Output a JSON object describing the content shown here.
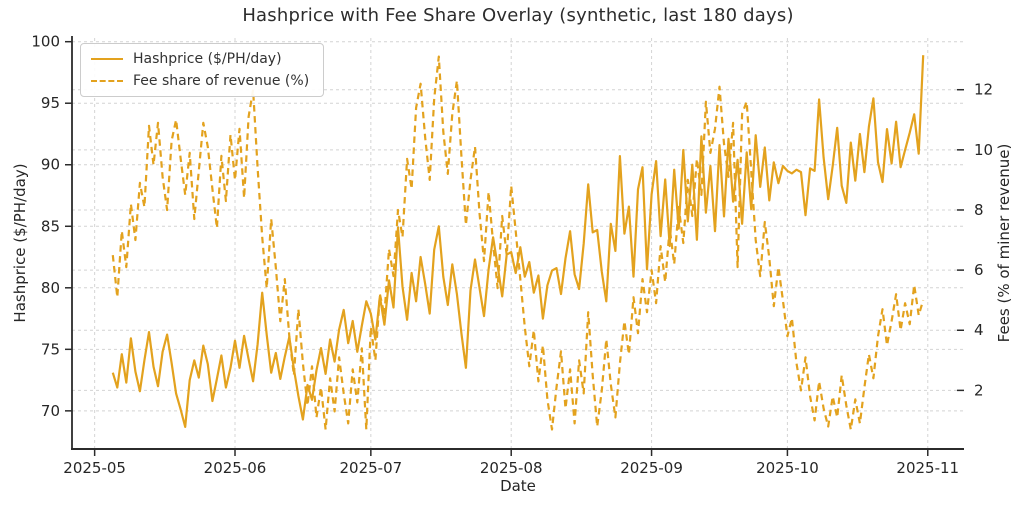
{
  "title": "Hashprice with Fee Share Overlay (synthetic, last 180 days)",
  "colors": {
    "line": "#E3A21E",
    "text": "#262626",
    "grid": "#d4d4d4",
    "spine": "#2b2b2b",
    "legend_border": "#cccccc",
    "background": "#ffffff"
  },
  "legend": {
    "items": [
      {
        "label": "Hashprice ($/PH/day)",
        "style": "solid"
      },
      {
        "label": "Fee share of revenue (%)",
        "style": "dashed"
      }
    ]
  },
  "axes": {
    "x": {
      "label": "Date",
      "tick_labels": [
        "2025-05",
        "2025-06",
        "2025-07",
        "2025-08",
        "2025-09",
        "2025-10",
        "2025-11"
      ],
      "tick_days": [
        0,
        31,
        61,
        92,
        123,
        153,
        184
      ],
      "range_days": [
        -5,
        192
      ]
    },
    "y_left": {
      "label": "Hashprice ($/PH/day)",
      "ticks": [
        70,
        75,
        80,
        85,
        90,
        95,
        100
      ],
      "range": [
        66.9,
        100.3
      ]
    },
    "y_right": {
      "label": "Fees (% of miner revenue)",
      "ticks": [
        2,
        4,
        6,
        8,
        10,
        12
      ],
      "range": [
        0.05,
        13.72
      ]
    }
  },
  "chart_data": {
    "type": "line",
    "title": "Hashprice with Fee Share Overlay (synthetic, last 180 days)",
    "xlabel": "Date",
    "ylabel_left": "Hashprice ($/PH/day)",
    "ylabel_right": "Fees (% of miner revenue)",
    "x_start_date": "2025-05-05",
    "x_interval": "daily",
    "start_day_offset": 4,
    "n_points": 180,
    "x_tick_labels": [
      "2025-05",
      "2025-06",
      "2025-07",
      "2025-08",
      "2025-09",
      "2025-10",
      "2025-11"
    ],
    "xlim_days": [
      -5,
      192
    ],
    "ylim_left": [
      66.9,
      100.3
    ],
    "ylim_right": [
      0.05,
      13.72
    ],
    "grid": true,
    "legend_position": "upper left",
    "series": [
      {
        "name": "Hashprice ($/PH/day)",
        "axis": "left",
        "style": "solid",
        "color": "#E3A21E",
        "values": [
          73.1,
          71.9,
          74.6,
          72.3,
          75.9,
          73.2,
          71.6,
          74.1,
          76.4,
          73.6,
          72.0,
          74.8,
          76.2,
          73.9,
          71.4,
          70.1,
          68.7,
          72.5,
          74.1,
          72.7,
          75.3,
          73.8,
          70.8,
          72.6,
          74.5,
          71.9,
          73.5,
          75.7,
          73.5,
          76.1,
          74.2,
          72.4,
          75.4,
          79.6,
          76.2,
          73.1,
          74.7,
          72.6,
          74.4,
          76.0,
          73.4,
          71.2,
          69.3,
          72.1,
          70.9,
          73.3,
          75.1,
          73.0,
          75.8,
          74.0,
          76.6,
          78.2,
          75.5,
          77.3,
          74.8,
          76.9,
          78.9,
          77.9,
          75.8,
          79.3,
          77.0,
          80.6,
          78.4,
          84.9,
          80.1,
          77.4,
          81.2,
          78.9,
          82.5,
          80.3,
          77.9,
          83.1,
          85.0,
          80.9,
          78.6,
          81.9,
          79.5,
          76.3,
          73.5,
          79.8,
          82.3,
          80.0,
          77.7,
          81.5,
          84.1,
          81.8,
          79.3,
          82.7,
          82.9,
          81.2,
          83.3,
          80.9,
          82.1,
          79.6,
          81.0,
          77.5,
          80.2,
          81.4,
          81.6,
          79.5,
          82.4,
          84.6,
          81.1,
          79.9,
          83.6,
          88.4,
          84.5,
          84.7,
          81.3,
          78.9,
          85.2,
          83.0,
          90.7,
          84.4,
          86.6,
          80.9,
          88.0,
          89.8,
          81.5,
          87.6,
          90.3,
          84.2,
          88.8,
          83.4,
          89.6,
          84.8,
          91.2,
          85.4,
          90.0,
          83.9,
          92.3,
          86.1,
          89.9,
          84.6,
          91.6,
          85.8,
          92.1,
          87.0,
          90.4,
          85.2,
          91.0,
          86.4,
          92.4,
          88.2,
          91.4,
          87.1,
          90.2,
          88.5,
          89.9,
          89.5,
          89.3,
          89.6,
          89.4,
          85.9,
          89.7,
          89.5,
          95.3,
          90.6,
          87.2,
          89.9,
          93.0,
          88.3,
          86.9,
          91.8,
          88.7,
          92.5,
          89.4,
          93.1,
          95.4,
          90.2,
          88.6,
          92.9,
          90.1,
          93.5,
          89.8,
          91.2,
          92.6,
          94.1,
          90.9,
          98.9
        ]
      },
      {
        "name": "Fee share of revenue (%)",
        "axis": "right",
        "style": "dashed",
        "color": "#E3A21E",
        "values": [
          6.5,
          5.1,
          7.3,
          6.1,
          8.2,
          7.0,
          8.9,
          8.1,
          10.8,
          9.5,
          10.9,
          9.1,
          8.0,
          10.3,
          11.0,
          9.7,
          8.5,
          9.9,
          7.7,
          9.3,
          10.9,
          10.1,
          8.7,
          7.4,
          9.8,
          8.3,
          10.5,
          9.0,
          10.7,
          8.4,
          11.1,
          12.0,
          9.4,
          7.1,
          5.4,
          7.7,
          6.1,
          4.3,
          5.7,
          3.8,
          2.5,
          4.7,
          2.9,
          1.5,
          2.8,
          1.1,
          2.1,
          0.7,
          2.4,
          1.3,
          3.1,
          1.9,
          0.9,
          2.7,
          1.6,
          3.4,
          0.7,
          4.1,
          3.0,
          5.2,
          4.5,
          6.7,
          5.8,
          8.0,
          7.1,
          9.7,
          8.7,
          11.4,
          12.2,
          10.4,
          9.0,
          11.7,
          13.1,
          10.6,
          9.2,
          11.2,
          12.3,
          9.8,
          7.5,
          9.0,
          10.1,
          7.9,
          6.3,
          8.6,
          6.9,
          5.4,
          7.8,
          6.5,
          8.8,
          7.3,
          5.7,
          4.1,
          2.8,
          4.0,
          2.3,
          3.5,
          1.7,
          0.7,
          2.1,
          3.3,
          1.4,
          2.7,
          0.9,
          3.0,
          1.9,
          4.6,
          2.5,
          0.8,
          2.0,
          3.7,
          2.2,
          1.1,
          2.9,
          4.3,
          3.2,
          5.1,
          3.9,
          5.7,
          4.6,
          6.0,
          4.9,
          6.8,
          5.6,
          7.4,
          6.2,
          8.1,
          6.9,
          9.0,
          7.8,
          9.7,
          8.5,
          11.6,
          9.9,
          10.7,
          12.1,
          10.2,
          9.1,
          10.9,
          6.1,
          11.2,
          11.6,
          9.3,
          7.0,
          5.8,
          7.6,
          6.4,
          4.8,
          6.1,
          5.0,
          3.8,
          4.4,
          2.9,
          2.0,
          3.1,
          1.8,
          1.0,
          2.3,
          1.4,
          0.8,
          1.8,
          1.1,
          2.5,
          1.5,
          0.7,
          1.7,
          0.9,
          2.1,
          3.2,
          2.4,
          3.8,
          4.7,
          3.5,
          4.3,
          5.2,
          4.0,
          4.9,
          4.2,
          5.5,
          4.5,
          5.0
        ]
      }
    ]
  }
}
